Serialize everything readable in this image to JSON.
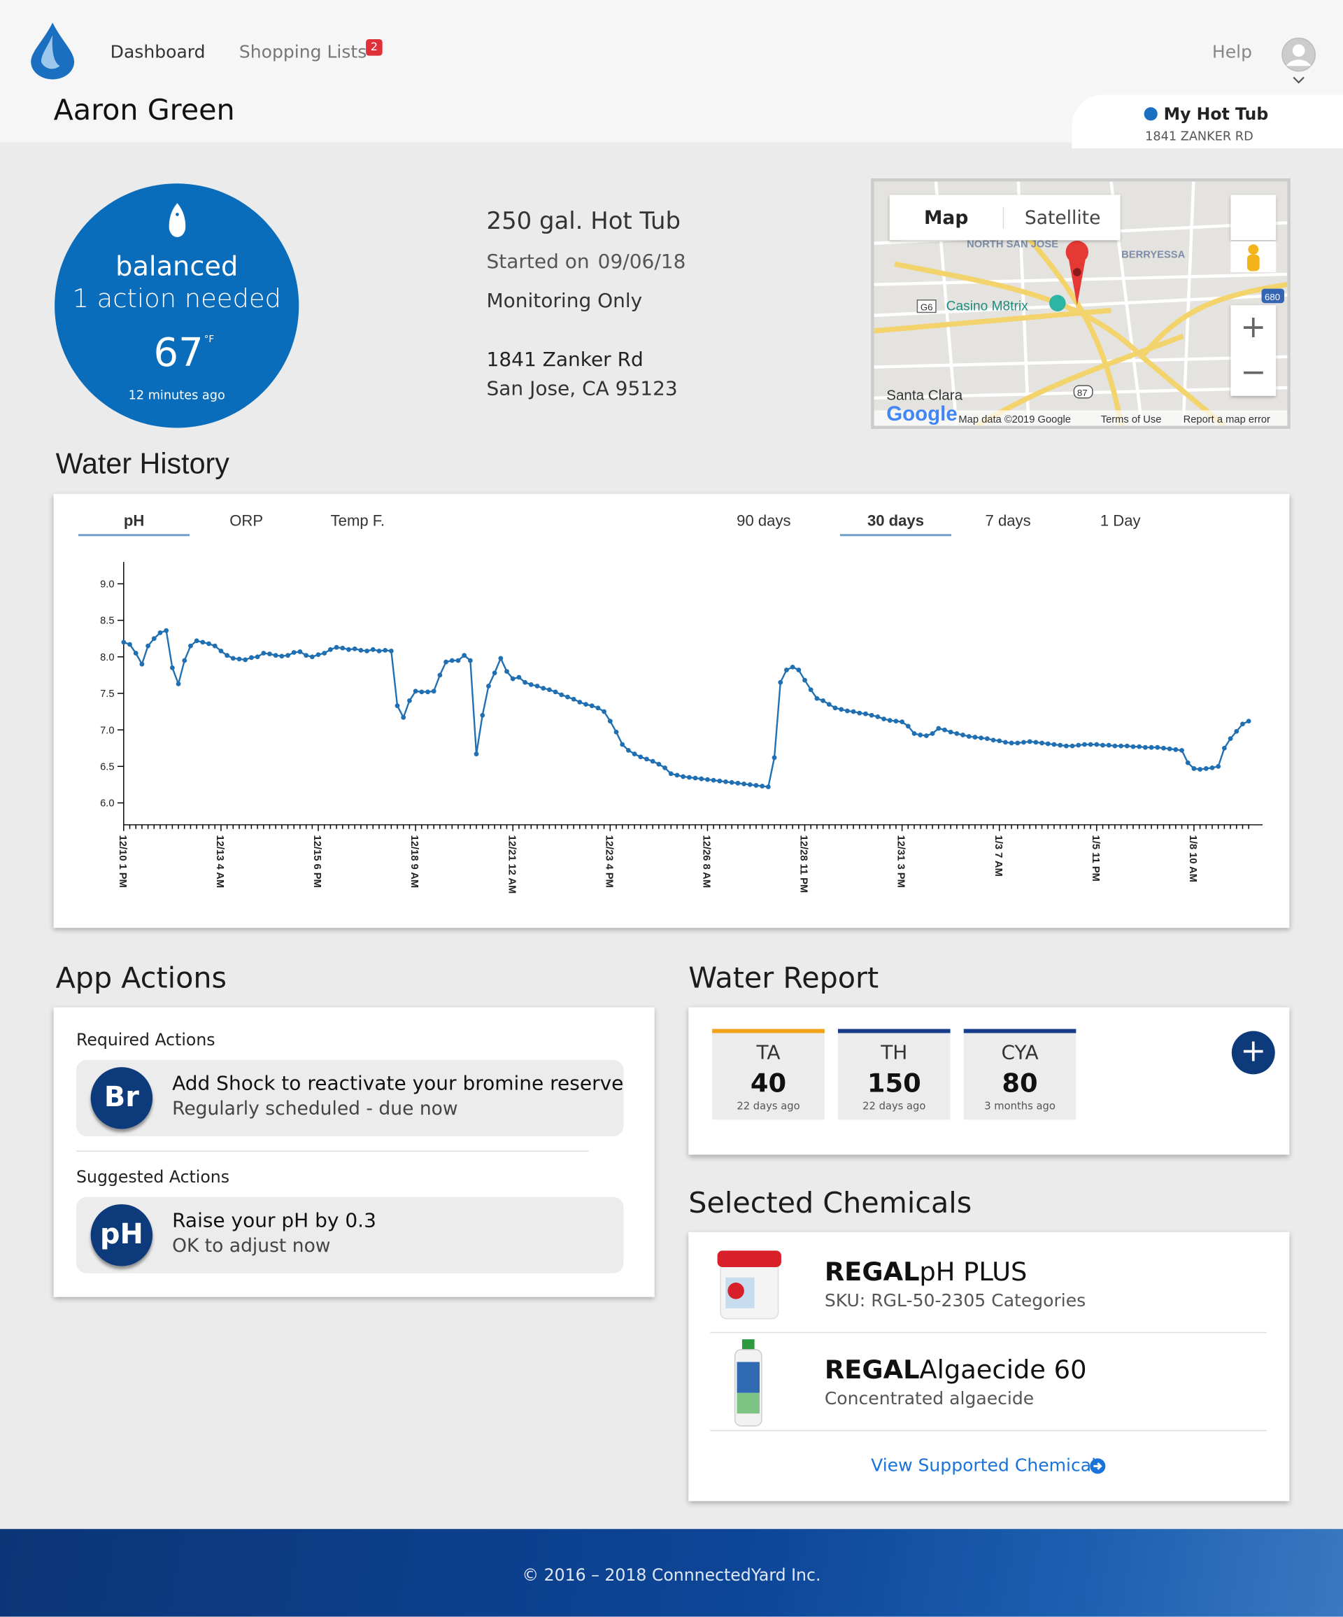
{
  "nav": {
    "items": [
      "Dashboard",
      "Shopping Lists"
    ],
    "badge": "2",
    "help": "Help"
  },
  "user": {
    "name": "Aaron Green"
  },
  "device": {
    "name": "My Hot Tub",
    "address": "1841 ZANKER RD"
  },
  "status": {
    "state": "balanced",
    "actions": "1 action needed",
    "temp": "67",
    "unit": "°F",
    "updated": "12 minutes ago"
  },
  "pool": {
    "size": "250 gal. Hot Tub",
    "started_label": "Started on",
    "started": "09/06/18",
    "mode": "Monitoring Only",
    "street": "1841 Zanker Rd",
    "city": "San Jose, CA 95123"
  },
  "map": {
    "tabs": [
      "Map",
      "Satellite"
    ],
    "labels": [
      "NORTH SAN JOSE",
      "BERRYESSA",
      "Casino M8trix",
      "Santa Clara",
      "G6",
      "680",
      "87"
    ],
    "logo": "Google",
    "credits": [
      "Map data ©2019 Google",
      "Terms of Use",
      "Report a map error"
    ]
  },
  "water_history": {
    "title": "Water History",
    "metric_tabs": [
      "pH",
      "ORP",
      "Temp F."
    ],
    "range_tabs": [
      "90 days",
      "30 days",
      "7 days",
      "1 Day"
    ]
  },
  "chart_data": {
    "type": "line",
    "color": "#1f6fb2",
    "ylim": [
      5.7,
      9.3
    ],
    "yticks": [
      {
        "value": 6,
        "label": "6.0"
      },
      {
        "value": 6.5,
        "label": "6.5"
      },
      {
        "value": 7,
        "label": "7.0"
      },
      {
        "value": 7.5,
        "label": "7.5"
      },
      {
        "value": 8,
        "label": "8.0"
      },
      {
        "value": 8.5,
        "label": "8.5"
      },
      {
        "value": 9,
        "label": "9.0"
      }
    ],
    "categories": [
      "12/10 1 PM",
      null,
      null,
      null,
      null,
      null,
      null,
      null,
      null,
      null,
      null,
      null,
      null,
      null,
      null,
      null,
      "12/13 4 AM",
      null,
      null,
      null,
      null,
      null,
      null,
      null,
      null,
      null,
      null,
      null,
      null,
      null,
      null,
      null,
      "12/15 6 PM",
      null,
      null,
      null,
      null,
      null,
      null,
      null,
      null,
      null,
      null,
      null,
      null,
      null,
      null,
      null,
      "12/18 9 AM",
      null,
      null,
      null,
      null,
      null,
      null,
      null,
      null,
      null,
      null,
      null,
      null,
      null,
      null,
      null,
      "12/21 12 AM",
      null,
      null,
      null,
      null,
      null,
      null,
      null,
      null,
      null,
      null,
      null,
      null,
      null,
      null,
      null,
      "12/23 4 PM",
      null,
      null,
      null,
      null,
      null,
      null,
      null,
      null,
      null,
      null,
      null,
      null,
      null,
      null,
      null,
      "12/26 8 AM",
      null,
      null,
      null,
      null,
      null,
      null,
      null,
      null,
      null,
      null,
      null,
      null,
      null,
      null,
      null,
      "12/28 11 PM",
      null,
      null,
      null,
      null,
      null,
      null,
      null,
      null,
      null,
      null,
      null,
      null,
      null,
      null,
      null,
      "12/31 3 PM",
      null,
      null,
      null,
      null,
      null,
      null,
      null,
      null,
      null,
      null,
      null,
      null,
      null,
      null,
      null,
      "1/3 7 AM",
      null,
      null,
      null,
      null,
      null,
      null,
      null,
      null,
      null,
      null,
      null,
      null,
      null,
      null,
      null,
      "1/5 11 PM",
      null,
      null,
      null,
      null,
      null,
      null,
      null,
      null,
      null,
      null,
      null,
      null,
      null,
      null,
      null,
      "1/8 10 AM",
      null,
      null,
      null,
      null,
      null,
      null,
      null,
      null,
      null
    ],
    "values": [
      8.2,
      8.17,
      8.05,
      7.9,
      8.15,
      8.25,
      8.33,
      8.36,
      7.85,
      7.63,
      7.95,
      8.15,
      8.22,
      8.2,
      8.18,
      8.15,
      8.08,
      8.02,
      7.98,
      7.97,
      7.96,
      7.99,
      8.0,
      8.05,
      8.04,
      8.02,
      8.01,
      8.02,
      8.06,
      8.07,
      8.02,
      8.0,
      8.03,
      8.05,
      8.1,
      8.13,
      8.12,
      8.1,
      8.11,
      8.09,
      8.08,
      8.1,
      8.08,
      8.09,
      8.08,
      7.33,
      7.17,
      7.4,
      7.53,
      7.52,
      7.52,
      7.53,
      7.75,
      7.93,
      7.95,
      7.95,
      8.02,
      7.95,
      6.67,
      7.2,
      7.6,
      7.78,
      7.98,
      7.8,
      7.7,
      7.72,
      7.65,
      7.62,
      7.6,
      7.57,
      7.55,
      7.52,
      7.48,
      7.45,
      7.42,
      7.38,
      7.35,
      7.33,
      7.3,
      7.25,
      7.12,
      6.97,
      6.8,
      6.72,
      6.67,
      6.63,
      6.6,
      6.57,
      6.53,
      6.48,
      6.4,
      6.38,
      6.36,
      6.35,
      6.34,
      6.33,
      6.32,
      6.31,
      6.3,
      6.29,
      6.28,
      6.27,
      6.26,
      6.25,
      6.24,
      6.23,
      6.22,
      6.62,
      7.65,
      7.82,
      7.86,
      7.82,
      7.68,
      7.55,
      7.43,
      7.4,
      7.35,
      7.3,
      7.28,
      7.26,
      7.25,
      7.23,
      7.22,
      7.2,
      7.18,
      7.15,
      7.13,
      7.12,
      7.11,
      7.05,
      6.95,
      6.93,
      6.92,
      6.95,
      7.02,
      7.0,
      6.97,
      6.95,
      6.93,
      6.91,
      6.9,
      6.89,
      6.88,
      6.86,
      6.85,
      6.83,
      6.82,
      6.82,
      6.83,
      6.84,
      6.83,
      6.82,
      6.81,
      6.8,
      6.79,
      6.78,
      6.78,
      6.79,
      6.8,
      6.8,
      6.8,
      6.79,
      6.79,
      6.78,
      6.78,
      6.78,
      6.77,
      6.77,
      6.76,
      6.76,
      6.76,
      6.75,
      6.74,
      6.73,
      6.72,
      6.55,
      6.47,
      6.46,
      6.47,
      6.48,
      6.5,
      6.75,
      6.88,
      6.98,
      7.08,
      7.12
    ]
  },
  "app_actions": {
    "title": "App Actions",
    "required_heading": "Required Actions",
    "required": [
      {
        "icon": "Br",
        "title": "Add Shock to reactivate your bromine reserve",
        "subtitle": "Regularly scheduled - due now"
      }
    ],
    "suggested_heading": "Suggested Actions",
    "suggested": [
      {
        "icon": "pH",
        "title": "Raise your pH by 0.3",
        "subtitle": "OK to adjust now"
      }
    ]
  },
  "water_report": {
    "title": "Water Report",
    "tests": [
      {
        "name": "TA",
        "value": "40",
        "age": "22 days ago",
        "color": "#f0a21b"
      },
      {
        "name": "TH",
        "value": "150",
        "age": "22 days ago",
        "color": "#173d8a"
      },
      {
        "name": "CYA",
        "value": "80",
        "age": "3 months ago",
        "color": "#173d8a"
      }
    ]
  },
  "chemicals": {
    "title": "Selected Chemicals",
    "items": [
      {
        "brand": "REGAL",
        "name": "pH PLUS",
        "detail": "SKU: RGL-50-2305 Categories"
      },
      {
        "brand": "REGAL",
        "name": "Algaecide 60",
        "detail": "Concentrated algaecide"
      }
    ],
    "link": "View Supported Chemicals"
  },
  "footer": {
    "text": "© 2016 – 2018 ConnnectedYard Inc."
  }
}
